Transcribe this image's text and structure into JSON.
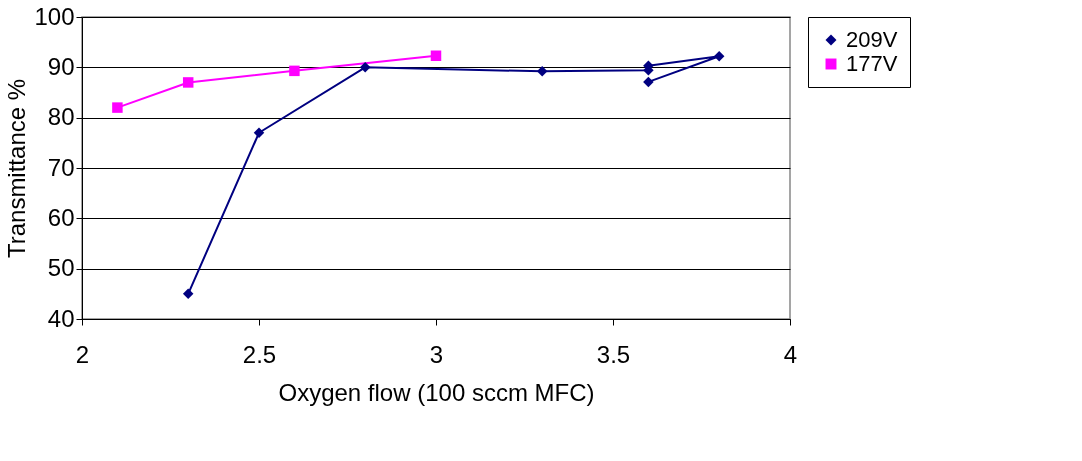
{
  "chart_data": {
    "type": "line",
    "xlabel": "Oxygen flow (100 sccm MFC)",
    "ylabel": "Transmittance %",
    "xlim": [
      2,
      4
    ],
    "xticks": [
      2,
      2.5,
      3,
      3.5,
      4
    ],
    "ylim": [
      40,
      100
    ],
    "yticks": [
      40,
      50,
      60,
      70,
      80,
      90,
      100
    ],
    "grid": "y",
    "legend": "right",
    "line_style": "solid",
    "series": [
      {
        "name": "209V",
        "color": "#000080",
        "marker": "diamond",
        "x": [
          2.3,
          2.5,
          2.8,
          3.3,
          3.6,
          3.6,
          3.8,
          3.6
        ],
        "values": [
          45,
          77,
          90,
          89.2,
          89.4,
          90.3,
          92.2,
          87.1
        ]
      },
      {
        "name": "177V",
        "color": "#ff00ff",
        "marker": "square",
        "x": [
          2.1,
          2.3,
          2.6,
          3.0
        ],
        "values": [
          82,
          87,
          89.3,
          92.3
        ]
      }
    ]
  }
}
